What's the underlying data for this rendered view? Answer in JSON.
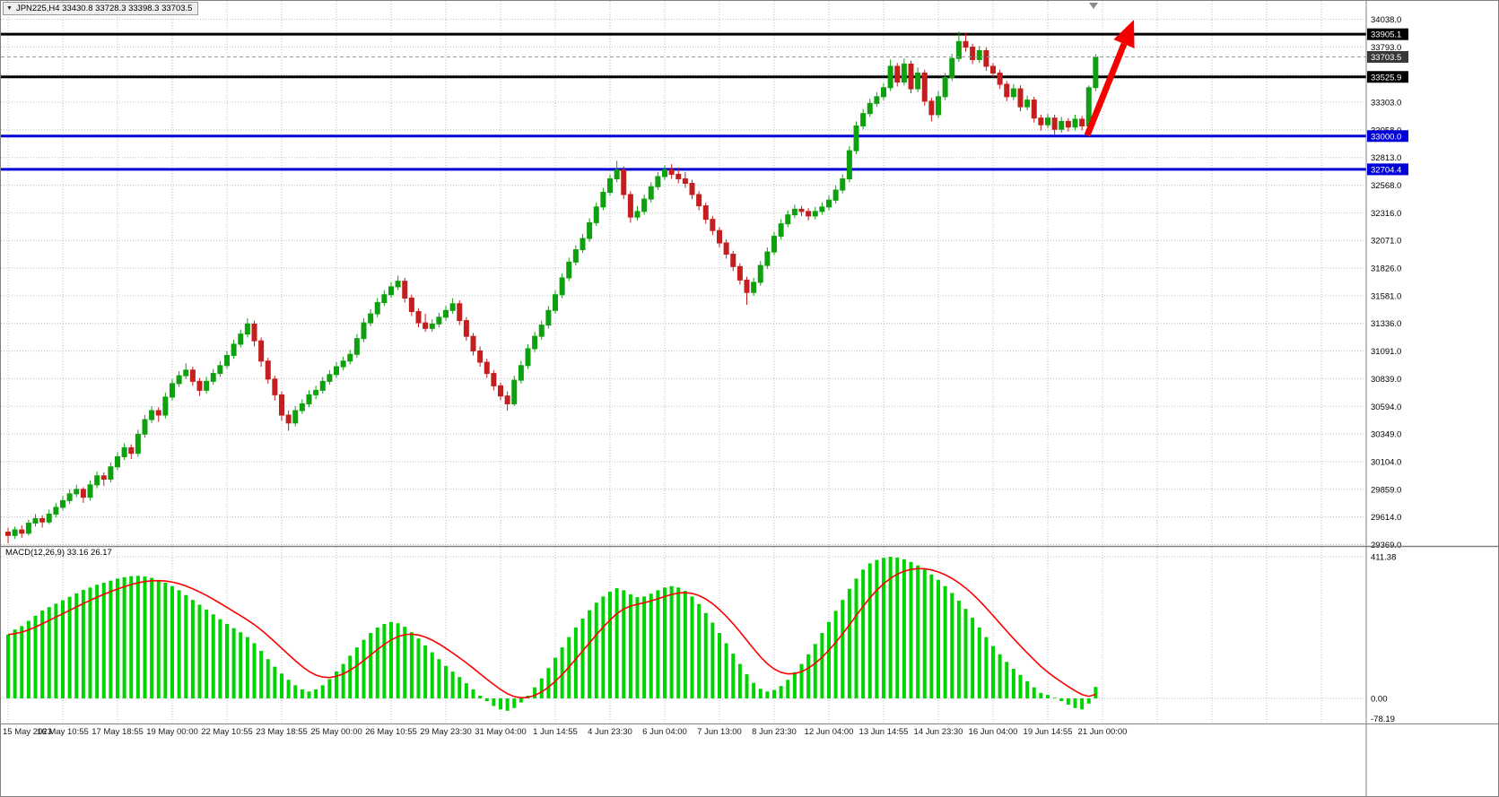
{
  "header": {
    "symbol_info": "JPN225,H4 33430.8 33728.3 33398.3 33703.5",
    "one_click_icon": "down-triangle"
  },
  "chart_data": [
    {
      "type": "candlestick",
      "title": "JPN225,H4",
      "timeframe": "H4",
      "candles_per_label": 8,
      "x_labels": [
        "15 May 2023",
        "16 May 10:55",
        "17 May 18:55",
        "19 May 00:00",
        "22 May 10:55",
        "23 May 18:55",
        "25 May 00:00",
        "26 May 10:55",
        "29 May 23:30",
        "31 May 04:00",
        "1 Jun 14:55",
        "4 Jun 23:30",
        "6 Jun 04:00",
        "7 Jun 13:00",
        "8 Jun 23:30",
        "12 Jun 04:00",
        "13 Jun 14:55",
        "14 Jun 23:30",
        "16 Jun 04:00",
        "19 Jun 14:55",
        "21 Jun 00:00"
      ],
      "price_axis": {
        "labels": [
          "34038.0",
          "33793.0",
          "33548.0",
          "33303.0",
          "33058.0",
          "32813.0",
          "32568.0",
          "32316.0",
          "32071.0",
          "31826.0",
          "31581.0",
          "31336.0",
          "31091.0",
          "30839.0",
          "30594.0",
          "30349.0",
          "30104.0",
          "29859.0",
          "29614.0",
          "29369.0"
        ],
        "top_value": 34038.0,
        "bottom_value": 29369.0
      },
      "hlines": [
        {
          "price": 33905.1,
          "label": "33905.1",
          "color": "#000000",
          "width": 3
        },
        {
          "price": 33525.9,
          "label": "33525.9",
          "color": "#000000",
          "width": 3
        },
        {
          "price": 33000.0,
          "label": "33000.0",
          "color": "#0000D8",
          "width": 3
        },
        {
          "price": 32704.4,
          "label": "32704.4",
          "color": "#0000D8",
          "width": 3
        }
      ],
      "current_price": {
        "value": 33703.5,
        "label": "33703.5",
        "bg": "#383838"
      },
      "annotations": [
        {
          "type": "arrow-up",
          "color": "#F50000"
        }
      ],
      "colors": {
        "up": "#0FA00F",
        "down": "#C41E1E",
        "grid": "#BEBEBE",
        "separator": "#808080",
        "axis_text": "#000000",
        "background": "#FFFFFF"
      },
      "candles": [
        [
          29480,
          29520,
          29380,
          29450
        ],
        [
          29450,
          29530,
          29420,
          29500
        ],
        [
          29500,
          29540,
          29430,
          29470
        ],
        [
          29470,
          29590,
          29450,
          29560
        ],
        [
          29560,
          29640,
          29530,
          29600
        ],
        [
          29600,
          29630,
          29520,
          29570
        ],
        [
          29570,
          29680,
          29550,
          29640
        ],
        [
          29640,
          29740,
          29610,
          29700
        ],
        [
          29700,
          29800,
          29670,
          29760
        ],
        [
          29760,
          29860,
          29730,
          29820
        ],
        [
          29820,
          29900,
          29790,
          29860
        ],
        [
          29860,
          29880,
          29740,
          29790
        ],
        [
          29790,
          29940,
          29760,
          29900
        ],
        [
          29900,
          30020,
          29870,
          29980
        ],
        [
          29980,
          30010,
          29890,
          29950
        ],
        [
          29950,
          30100,
          29920,
          30060
        ],
        [
          30060,
          30190,
          30030,
          30150
        ],
        [
          30150,
          30270,
          30120,
          30230
        ],
        [
          30230,
          30260,
          30130,
          30180
        ],
        [
          30180,
          30390,
          30150,
          30350
        ],
        [
          30350,
          30520,
          30320,
          30480
        ],
        [
          30480,
          30600,
          30450,
          30560
        ],
        [
          30560,
          30590,
          30460,
          30520
        ],
        [
          30520,
          30720,
          30490,
          30680
        ],
        [
          30680,
          30840,
          30650,
          30800
        ],
        [
          30800,
          30910,
          30770,
          30870
        ],
        [
          30870,
          30980,
          30840,
          30920
        ],
        [
          30920,
          30950,
          30780,
          30820
        ],
        [
          30820,
          30850,
          30690,
          30740
        ],
        [
          30740,
          30860,
          30710,
          30820
        ],
        [
          30820,
          30930,
          30790,
          30890
        ],
        [
          30890,
          31000,
          30860,
          30960
        ],
        [
          30960,
          31090,
          30930,
          31050
        ],
        [
          31050,
          31190,
          31020,
          31150
        ],
        [
          31150,
          31280,
          31120,
          31240
        ],
        [
          31240,
          31380,
          31210,
          31330
        ],
        [
          31330,
          31360,
          31130,
          31180
        ],
        [
          31180,
          31210,
          30950,
          31000
        ],
        [
          31000,
          31030,
          30800,
          30840
        ],
        [
          30840,
          30870,
          30650,
          30700
        ],
        [
          30700,
          30730,
          30470,
          30520
        ],
        [
          30520,
          30560,
          30380,
          30450
        ],
        [
          30450,
          30600,
          30420,
          30560
        ],
        [
          30560,
          30660,
          30530,
          30620
        ],
        [
          30620,
          30740,
          30590,
          30700
        ],
        [
          30700,
          30780,
          30660,
          30740
        ],
        [
          30740,
          30860,
          30710,
          30820
        ],
        [
          30820,
          30920,
          30790,
          30880
        ],
        [
          30880,
          30990,
          30850,
          30950
        ],
        [
          30950,
          31040,
          30920,
          31000
        ],
        [
          31000,
          31100,
          30970,
          31060
        ],
        [
          31060,
          31240,
          31030,
          31200
        ],
        [
          31200,
          31380,
          31170,
          31340
        ],
        [
          31340,
          31460,
          31310,
          31420
        ],
        [
          31420,
          31560,
          31390,
          31520
        ],
        [
          31520,
          31630,
          31490,
          31590
        ],
        [
          31590,
          31700,
          31560,
          31660
        ],
        [
          31660,
          31760,
          31630,
          31710
        ],
        [
          31710,
          31740,
          31520,
          31560
        ],
        [
          31560,
          31590,
          31400,
          31440
        ],
        [
          31440,
          31470,
          31300,
          31340
        ],
        [
          31340,
          31420,
          31260,
          31290
        ],
        [
          31290,
          31370,
          31260,
          31330
        ],
        [
          31330,
          31430,
          31300,
          31390
        ],
        [
          31390,
          31490,
          31360,
          31450
        ],
        [
          31450,
          31560,
          31420,
          31510
        ],
        [
          31510,
          31540,
          31320,
          31360
        ],
        [
          31360,
          31390,
          31180,
          31220
        ],
        [
          31220,
          31250,
          31050,
          31090
        ],
        [
          31090,
          31130,
          30950,
          30990
        ],
        [
          30990,
          31020,
          30850,
          30890
        ],
        [
          30890,
          30920,
          30740,
          30780
        ],
        [
          30780,
          30810,
          30650,
          30690
        ],
        [
          30690,
          30730,
          30560,
          30620
        ],
        [
          30620,
          30870,
          30600,
          30830
        ],
        [
          30830,
          31000,
          30800,
          30960
        ],
        [
          30960,
          31150,
          30930,
          31110
        ],
        [
          31110,
          31260,
          31080,
          31220
        ],
        [
          31220,
          31360,
          31190,
          31320
        ],
        [
          31320,
          31490,
          31290,
          31450
        ],
        [
          31450,
          31630,
          31420,
          31590
        ],
        [
          31590,
          31780,
          31560,
          31740
        ],
        [
          31740,
          31920,
          31710,
          31880
        ],
        [
          31880,
          32030,
          31850,
          31990
        ],
        [
          31990,
          32130,
          31960,
          32090
        ],
        [
          32090,
          32270,
          32060,
          32230
        ],
        [
          32230,
          32410,
          32200,
          32370
        ],
        [
          32370,
          32540,
          32340,
          32500
        ],
        [
          32500,
          32660,
          32470,
          32620
        ],
        [
          32620,
          32780,
          32590,
          32700
        ],
        [
          32700,
          32730,
          32440,
          32480
        ],
        [
          32480,
          32510,
          32230,
          32280
        ],
        [
          32280,
          32380,
          32250,
          32330
        ],
        [
          32330,
          32480,
          32300,
          32440
        ],
        [
          32440,
          32590,
          32410,
          32550
        ],
        [
          32550,
          32680,
          32520,
          32640
        ],
        [
          32640,
          32740,
          32610,
          32700
        ],
        [
          32700,
          32750,
          32620,
          32660
        ],
        [
          32660,
          32720,
          32580,
          32620
        ],
        [
          32620,
          32680,
          32540,
          32580
        ],
        [
          32580,
          32610,
          32440,
          32480
        ],
        [
          32480,
          32510,
          32340,
          32380
        ],
        [
          32380,
          32410,
          32220,
          32260
        ],
        [
          32260,
          32290,
          32120,
          32160
        ],
        [
          32160,
          32190,
          32010,
          32050
        ],
        [
          32050,
          32080,
          31910,
          31950
        ],
        [
          31950,
          31980,
          31800,
          31840
        ],
        [
          31840,
          31870,
          31680,
          31720
        ],
        [
          31720,
          31750,
          31500,
          31610
        ],
        [
          31610,
          31740,
          31580,
          31700
        ],
        [
          31700,
          31890,
          31670,
          31850
        ],
        [
          31850,
          32010,
          31820,
          31970
        ],
        [
          31970,
          32150,
          31940,
          32110
        ],
        [
          32110,
          32260,
          32080,
          32220
        ],
        [
          32220,
          32340,
          32190,
          32300
        ],
        [
          32300,
          32390,
          32270,
          32350
        ],
        [
          32350,
          32380,
          32290,
          32330
        ],
        [
          32330,
          32360,
          32250,
          32290
        ],
        [
          32290,
          32370,
          32260,
          32330
        ],
        [
          32330,
          32410,
          32300,
          32370
        ],
        [
          32370,
          32470,
          32340,
          32430
        ],
        [
          32430,
          32560,
          32400,
          32520
        ],
        [
          32520,
          32660,
          32490,
          32620
        ],
        [
          32620,
          32910,
          32590,
          32870
        ],
        [
          32870,
          33130,
          32840,
          33090
        ],
        [
          33090,
          33240,
          33060,
          33200
        ],
        [
          33200,
          33330,
          33170,
          33290
        ],
        [
          33290,
          33390,
          33260,
          33350
        ],
        [
          33350,
          33470,
          33320,
          33430
        ],
        [
          33430,
          33680,
          33400,
          33620
        ],
        [
          33620,
          33650,
          33440,
          33480
        ],
        [
          33480,
          33690,
          33450,
          33640
        ],
        [
          33640,
          33670,
          33380,
          33420
        ],
        [
          33420,
          33610,
          33390,
          33560
        ],
        [
          33560,
          33590,
          33270,
          33310
        ],
        [
          33310,
          33340,
          33130,
          33190
        ],
        [
          33190,
          33400,
          33160,
          33350
        ],
        [
          33350,
          33560,
          33320,
          33520
        ],
        [
          33520,
          33730,
          33490,
          33690
        ],
        [
          33690,
          33930,
          33660,
          33840
        ],
        [
          33840,
          33920,
          33750,
          33790
        ],
        [
          33790,
          33820,
          33640,
          33680
        ],
        [
          33680,
          33800,
          33650,
          33760
        ],
        [
          33760,
          33790,
          33580,
          33620
        ],
        [
          33620,
          33650,
          33520,
          33560
        ],
        [
          33560,
          33590,
          33420,
          33460
        ],
        [
          33460,
          33490,
          33310,
          33350
        ],
        [
          33350,
          33460,
          33320,
          33420
        ],
        [
          33420,
          33450,
          33220,
          33260
        ],
        [
          33260,
          33360,
          33230,
          33320
        ],
        [
          33320,
          33350,
          33120,
          33160
        ],
        [
          33160,
          33190,
          33050,
          33100
        ],
        [
          33100,
          33200,
          33070,
          33160
        ],
        [
          33160,
          33190,
          33005,
          33060
        ],
        [
          33060,
          33170,
          33030,
          33130
        ],
        [
          33130,
          33160,
          33040,
          33080
        ],
        [
          33080,
          33190,
          33050,
          33150
        ],
        [
          33150,
          33180,
          33050,
          33090
        ],
        [
          33090,
          33450,
          33060,
          33430
        ],
        [
          33430.8,
          33728.3,
          33398.3,
          33703.5
        ]
      ]
    },
    {
      "type": "bar",
      "name": "MACD",
      "title": "MACD(12,26,9) 33.16 26.17",
      "params": "12,26,9",
      "current_macd": 33.16,
      "current_signal": 26.17,
      "signal_period": 9,
      "y_axis_labels": [
        "411.38",
        "0.00",
        "-78.19"
      ],
      "y_max": 411.38,
      "y_min": -78.19,
      "colors": {
        "histogram": "#00D400",
        "signal": "#FF0000"
      },
      "values": [
        185,
        200,
        210,
        225,
        240,
        255,
        265,
        275,
        285,
        295,
        305,
        315,
        322,
        330,
        336,
        342,
        348,
        352,
        355,
        356,
        354,
        350,
        344,
        336,
        326,
        314,
        300,
        286,
        272,
        258,
        244,
        230,
        216,
        204,
        192,
        178,
        160,
        138,
        114,
        92,
        72,
        54,
        38,
        26,
        20,
        26,
        38,
        56,
        78,
        100,
        124,
        148,
        170,
        190,
        206,
        216,
        222,
        218,
        208,
        192,
        174,
        154,
        134,
        114,
        94,
        78,
        62,
        44,
        26,
        8,
        -8,
        -22,
        -32,
        -36,
        -28,
        -12,
        8,
        32,
        58,
        88,
        118,
        148,
        178,
        206,
        232,
        256,
        278,
        296,
        310,
        320,
        314,
        302,
        294,
        296,
        304,
        314,
        322,
        326,
        322,
        312,
        296,
        274,
        248,
        220,
        190,
        160,
        130,
        100,
        70,
        45,
        28,
        20,
        24,
        36,
        54,
        76,
        100,
        128,
        158,
        190,
        222,
        254,
        286,
        318,
        348,
        374,
        392,
        402,
        408,
        411.38,
        409,
        404,
        396,
        386,
        374,
        360,
        344,
        326,
        306,
        284,
        260,
        234,
        206,
        178,
        152,
        128,
        106,
        86,
        68,
        50,
        32,
        16,
        10,
        2,
        -8,
        -18,
        -28,
        -32,
        -15,
        33.16
      ]
    }
  ]
}
